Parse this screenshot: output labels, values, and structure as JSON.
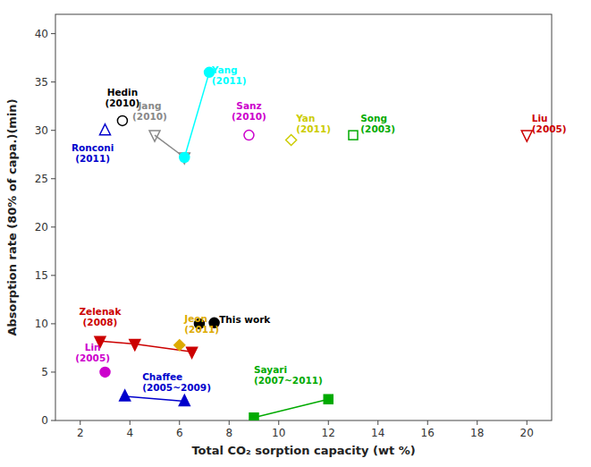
{
  "chart_data": {
    "type": "scatter",
    "xlabel": "Total CO₂ sorption capacity (wt %)",
    "ylabel": "Absorption rate (80% of capa.)(min)",
    "xlim": [
      1,
      21
    ],
    "ylim": [
      0,
      42
    ],
    "xticks": [
      2,
      4,
      6,
      8,
      10,
      12,
      14,
      16,
      18,
      20
    ],
    "yticks": [
      0,
      5,
      10,
      15,
      20,
      25,
      30,
      35,
      40
    ],
    "series": [
      {
        "color": "#000000",
        "marker": "circle-open",
        "line_style": "none",
        "x": [
          3.7
        ],
        "values": [
          31.0
        ]
      },
      {
        "color": "#0000cc",
        "marker": "triangle-up-open",
        "line_style": "none",
        "x": [
          3.0
        ],
        "values": [
          30.0
        ]
      },
      {
        "color": "#888888",
        "marker": "triangle-down-open",
        "line_style": "solid",
        "x": [
          5.0,
          6.2
        ],
        "values": [
          29.5,
          27.2
        ]
      },
      {
        "color": "cyan",
        "marker": "circle",
        "line_style": "solid",
        "x": [
          6.2,
          7.2
        ],
        "values": [
          27.2,
          36.0
        ]
      },
      {
        "color": "#cc00cc",
        "marker": "circle-open",
        "line_style": "none",
        "x": [
          8.8
        ],
        "values": [
          29.5
        ]
      },
      {
        "color": "#cccc00",
        "marker": "diamond-open",
        "line_style": "none",
        "x": [
          10.5
        ],
        "values": [
          29.0
        ]
      },
      {
        "color": "#00aa00",
        "marker": "square-open",
        "line_style": "none",
        "x": [
          13.0
        ],
        "values": [
          29.5
        ]
      },
      {
        "color": "#cc0000",
        "marker": "triangle-down-open",
        "line_style": "none",
        "x": [
          20.0
        ],
        "values": [
          29.5
        ]
      },
      {
        "color": "#cc0000",
        "marker": "triangle-down",
        "line_style": "solid",
        "x": [
          2.8,
          4.2,
          6.5
        ],
        "values": [
          8.2,
          7.9,
          7.1
        ]
      },
      {
        "color": "#ddaa00",
        "marker": "diamond",
        "line_style": "none",
        "x": [
          6.0
        ],
        "values": [
          7.8
        ]
      },
      {
        "color": "#000000",
        "marker": "circle",
        "line_style": "none",
        "x": [
          6.8,
          7.4
        ],
        "values": [
          10.0,
          10.1
        ]
      },
      {
        "color": "#cc00cc",
        "marker": "circle",
        "line_style": "none",
        "x": [
          3.0
        ],
        "values": [
          5.0
        ]
      },
      {
        "color": "#0000cc",
        "marker": "triangle-up",
        "line_style": "solid",
        "x": [
          3.8,
          6.2
        ],
        "values": [
          2.5,
          2.0
        ]
      },
      {
        "color": "#00aa00",
        "marker": "square",
        "line_style": "solid",
        "x": [
          9.0,
          12.0
        ],
        "values": [
          0.3,
          2.2
        ]
      }
    ],
    "annotations": [
      {
        "text": "Hedin\n(2010)",
        "x": 3.7,
        "y": 32.2,
        "color": "#000000",
        "align": "center"
      },
      {
        "text": "Ronconi\n(2011)",
        "x": 2.5,
        "y": 26.5,
        "color": "#0000cc",
        "align": "center"
      },
      {
        "text": "Jang\n(2010)",
        "x": 4.8,
        "y": 30.8,
        "color": "#888888",
        "align": "center"
      },
      {
        "text": "Yang\n(2011)",
        "x": 7.3,
        "y": 34.5,
        "color": "cyan",
        "align": "left"
      },
      {
        "text": "Sanz\n(2010)",
        "x": 8.8,
        "y": 30.8,
        "color": "#cc00cc",
        "align": "center"
      },
      {
        "text": "Yan\n(2011)",
        "x": 10.7,
        "y": 29.5,
        "color": "#cccc00",
        "align": "left"
      },
      {
        "text": "Song\n(2003)",
        "x": 13.3,
        "y": 29.5,
        "color": "#00aa00",
        "align": "left"
      },
      {
        "text": "Liu\n(2005)",
        "x": 20.2,
        "y": 29.5,
        "color": "#cc0000",
        "align": "left"
      },
      {
        "text": "Zelenak\n(2008)",
        "x": 2.8,
        "y": 9.5,
        "color": "#cc0000",
        "align": "center"
      },
      {
        "text": "Jeon\n(2011)",
        "x": 6.2,
        "y": 8.8,
        "color": "#ddaa00",
        "align": "left"
      },
      {
        "text": "This work",
        "x": 7.6,
        "y": 9.8,
        "color": "#000000",
        "align": "left"
      },
      {
        "text": "Lin\n(2005)",
        "x": 2.5,
        "y": 5.8,
        "color": "#cc00cc",
        "align": "center"
      },
      {
        "text": "Chaffee\n(2005~2009)",
        "x": 4.5,
        "y": 2.8,
        "color": "#0000cc",
        "align": "left"
      },
      {
        "text": "Sayari\n(2007~2011)",
        "x": 9.0,
        "y": 3.5,
        "color": "#00aa00",
        "align": "left"
      }
    ]
  }
}
